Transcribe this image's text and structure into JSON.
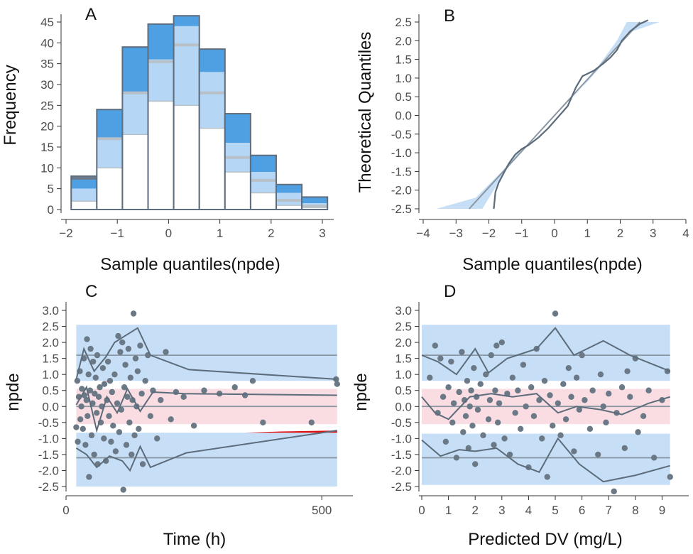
{
  "colors": {
    "band_blue": "#c6dff7",
    "band_pink": "#fadde2",
    "hist_dark": "#4ea0e3",
    "hist_light": "#b5d6f5",
    "edge": "#5e6e7e",
    "median": "#6b7b8b",
    "point": "#6b7986",
    "line": "#5d6c7a",
    "ref": "#8a97a3",
    "red": "#dd1111"
  },
  "chart_data": [
    {
      "panel": "A",
      "type": "bar",
      "xlabel": "Sample quantiles(npde)",
      "ylabel": "Frequency",
      "xlim": [
        -2,
        3
      ],
      "ylim": [
        0,
        47
      ],
      "xticks": [
        "−2",
        "−1",
        "0",
        "1",
        "2",
        "3"
      ],
      "yticks": [
        "0",
        "5",
        "10",
        "15",
        "20",
        "25",
        "30",
        "35",
        "40",
        "45"
      ],
      "bins": [
        -1.9,
        -1.4,
        -0.9,
        -0.4,
        0.1,
        0.6,
        1.1,
        1.6,
        2.1,
        2.6,
        3.1
      ],
      "observed": [
        2,
        10,
        18,
        26,
        25,
        19.5,
        9,
        4,
        1,
        0.5
      ],
      "pi_low": [
        8,
        24,
        39,
        44.5,
        46.5,
        38.5,
        23,
        13,
        6,
        3
      ],
      "pi_mid": [
        5,
        17,
        28,
        36,
        44,
        33,
        16,
        9,
        4,
        1.5
      ],
      "pi_median": [
        7.5,
        17,
        28,
        35.5,
        39.5,
        28,
        12.5,
        7,
        2.2,
        0.8
      ]
    },
    {
      "panel": "B",
      "type": "line",
      "xlabel": "Sample quantiles(npde)",
      "ylabel": "Theoretical Quantiles",
      "xlim": [
        -4,
        4
      ],
      "ylim": [
        -2.5,
        2.5
      ],
      "xticks": [
        "−4",
        "−3",
        "−2",
        "−1",
        "0",
        "1",
        "2",
        "3",
        "4"
      ],
      "yticks": [
        "-2.5",
        "-2.0",
        "-1.5",
        "-1.0",
        "-0.5",
        "0.0",
        "0.5",
        "1.0",
        "1.5",
        "2.0",
        "2.5"
      ],
      "band": {
        "upper": [
          [
            -2.2,
            -2.5
          ],
          [
            -1.5,
            -1.5
          ],
          [
            -0.9,
            -0.8
          ],
          [
            0,
            0
          ],
          [
            0.9,
            0.8
          ],
          [
            1.6,
            1.5
          ],
          [
            2.2,
            2.2
          ],
          [
            3.2,
            2.5
          ]
        ],
        "lower": [
          [
            -3.6,
            -2.5
          ],
          [
            -2.4,
            -2.2
          ],
          [
            -1.6,
            -1.5
          ],
          [
            -0.9,
            -0.8
          ],
          [
            0,
            0
          ],
          [
            0.8,
            0.7
          ],
          [
            1.4,
            1.4
          ],
          [
            1.9,
            2.0
          ],
          [
            2.2,
            2.5
          ]
        ]
      },
      "reference_line": [
        [
          -2.6,
          -2.5
        ],
        [
          2.6,
          2.5
        ]
      ],
      "observed_line": [
        [
          -1.85,
          -2.5
        ],
        [
          -1.8,
          -2.05
        ],
        [
          -1.7,
          -1.8
        ],
        [
          -1.55,
          -1.55
        ],
        [
          -1.4,
          -1.3
        ],
        [
          -1.2,
          -1.05
        ],
        [
          -1.0,
          -0.9
        ],
        [
          -0.8,
          -0.8
        ],
        [
          -0.5,
          -0.6
        ],
        [
          -0.2,
          -0.35
        ],
        [
          0.1,
          -0.05
        ],
        [
          0.4,
          0.25
        ],
        [
          0.65,
          0.75
        ],
        [
          0.85,
          1.05
        ],
        [
          1.2,
          1.2
        ],
        [
          1.5,
          1.4
        ],
        [
          1.7,
          1.55
        ],
        [
          1.9,
          1.75
        ],
        [
          2.05,
          2.0
        ],
        [
          2.3,
          2.25
        ],
        [
          2.6,
          2.45
        ],
        [
          2.85,
          2.55
        ]
      ]
    },
    {
      "panel": "C",
      "type": "scatter",
      "xlabel": "Time (h)",
      "ylabel": "npde",
      "xlim": [
        0,
        540
      ],
      "ylim": [
        -2.9,
        3.2
      ],
      "xticks": [
        0,
        500
      ],
      "xtick_labels": [
        "0",
        "500"
      ],
      "yticks": [
        "-2.5",
        "-2.0",
        "-1.5",
        "-1.0",
        "-0.5",
        "0.0",
        "0.5",
        "1.0",
        "1.5",
        "2.0",
        "2.5",
        "3.0"
      ],
      "band_x": [
        20,
        530
      ],
      "bands": {
        "upper": [
          0.8,
          2.55
        ],
        "middle": [
          -0.55,
          0.55
        ],
        "lower": [
          -2.5,
          -0.82
        ]
      },
      "ref_levels": [
        -1.6,
        0,
        1.6
      ],
      "lines": {
        "upper": [
          [
            20,
            0.85
          ],
          [
            35,
            1.8
          ],
          [
            55,
            1.1
          ],
          [
            78,
            1.55
          ],
          [
            95,
            2.0
          ],
          [
            115,
            2.2
          ],
          [
            140,
            2.45
          ],
          [
            165,
            1.6
          ],
          [
            240,
            1.15
          ],
          [
            530,
            0.85
          ]
        ],
        "middle": [
          [
            20,
            0.05
          ],
          [
            40,
            0.6
          ],
          [
            60,
            -0.75
          ],
          [
            80,
            0.3
          ],
          [
            100,
            -0.2
          ],
          [
            120,
            0.55
          ],
          [
            145,
            -0.15
          ],
          [
            170,
            0.45
          ],
          [
            230,
            0.4
          ],
          [
            530,
            0.35
          ]
        ],
        "lower": [
          [
            20,
            -1.3
          ],
          [
            40,
            -1.5
          ],
          [
            60,
            -1.9
          ],
          [
            85,
            -1.55
          ],
          [
            110,
            -1.7
          ],
          [
            125,
            -2.0
          ],
          [
            145,
            -1.25
          ],
          [
            165,
            -1.9
          ],
          [
            235,
            -1.45
          ],
          [
            530,
            -0.75
          ]
        ]
      },
      "points": [
        [
          20,
          -0.65
        ],
        [
          22,
          0.8
        ],
        [
          23,
          -1.1
        ],
        [
          25,
          0.3
        ],
        [
          27,
          1.1
        ],
        [
          28,
          -0.4
        ],
        [
          30,
          0.0
        ],
        [
          31,
          0.55
        ],
        [
          33,
          -0.7
        ],
        [
          35,
          1.5
        ],
        [
          36,
          0.35
        ],
        [
          38,
          -1.2
        ],
        [
          40,
          0.2
        ],
        [
          41,
          2.1
        ],
        [
          42,
          -0.3
        ],
        [
          44,
          1.0
        ],
        [
          45,
          -2.2
        ],
        [
          47,
          0.5
        ],
        [
          48,
          1.8
        ],
        [
          50,
          -0.9
        ],
        [
          52,
          0.1
        ],
        [
          53,
          1.4
        ],
        [
          55,
          -1.5
        ],
        [
          56,
          0.4
        ],
        [
          58,
          0.9
        ],
        [
          60,
          -0.2
        ],
        [
          61,
          1.6
        ],
        [
          62,
          -1.8
        ],
        [
          64,
          0.3
        ],
        [
          66,
          0.6
        ],
        [
          68,
          -0.5
        ],
        [
          70,
          0.0
        ],
        [
          72,
          1.2
        ],
        [
          74,
          -1.0
        ],
        [
          75,
          0.7
        ],
        [
          78,
          -1.7
        ],
        [
          80,
          0.2
        ],
        [
          82,
          1.4
        ],
        [
          84,
          -0.3
        ],
        [
          86,
          0.8
        ],
        [
          88,
          -1.1
        ],
        [
          90,
          0.45
        ],
        [
          92,
          -0.6
        ],
        [
          95,
          1.0
        ],
        [
          97,
          -1.4
        ],
        [
          100,
          0.1
        ],
        [
          102,
          2.2
        ],
        [
          104,
          -0.8
        ],
        [
          106,
          1.7
        ],
        [
          108,
          -0.1
        ],
        [
          110,
          2.0
        ],
        [
          112,
          -2.6
        ],
        [
          114,
          0.6
        ],
        [
          116,
          1.3
        ],
        [
          118,
          -1.2
        ],
        [
          120,
          0.3
        ],
        [
          122,
          1.8
        ],
        [
          124,
          -0.5
        ],
        [
          126,
          0.9
        ],
        [
          128,
          -1.5
        ],
        [
          130,
          0.2
        ],
        [
          132,
          2.9
        ],
        [
          134,
          -0.9
        ],
        [
          136,
          1.5
        ],
        [
          138,
          0.0
        ],
        [
          140,
          1.1
        ],
        [
          142,
          -0.7
        ],
        [
          145,
          1.9
        ],
        [
          148,
          0.4
        ],
        [
          150,
          -1.8
        ],
        [
          155,
          0.8
        ],
        [
          160,
          1.6
        ],
        [
          165,
          -0.3
        ],
        [
          170,
          0.5
        ],
        [
          178,
          -1.0
        ],
        [
          185,
          0.2
        ],
        [
          195,
          1.7
        ],
        [
          205,
          -0.4
        ],
        [
          215,
          0.45
        ],
        [
          230,
          0.3
        ],
        [
          250,
          -0.6
        ],
        [
          270,
          0.5
        ],
        [
          300,
          0.4
        ],
        [
          330,
          0.6
        ],
        [
          350,
          0.35
        ],
        [
          365,
          0.8
        ],
        [
          385,
          -0.5
        ],
        [
          480,
          -0.5
        ],
        [
          528,
          0.85
        ],
        [
          530,
          0.7
        ]
      ]
    },
    {
      "panel": "D",
      "type": "scatter",
      "xlabel": "Predicted DV (mg/L)",
      "ylabel": "npde",
      "xlim": [
        0,
        9.6
      ],
      "ylim": [
        -2.9,
        3.2
      ],
      "xticks": [
        0,
        1,
        2,
        3,
        4,
        5,
        6,
        7,
        8,
        9
      ],
      "xtick_labels": [
        "0",
        "1",
        "2",
        "3",
        "4",
        "5",
        "6",
        "7",
        "8",
        "9"
      ],
      "yticks": [
        "-2.5",
        "-2.0",
        "-1.5",
        "-1.0",
        "-0.5",
        "0.0",
        "0.5",
        "1.0",
        "1.5",
        "2.0",
        "2.5",
        "3.0"
      ],
      "band_x": [
        0,
        9.3
      ],
      "bands": {
        "upper": [
          0.8,
          2.55
        ],
        "middle": [
          -0.55,
          0.55
        ],
        "lower": [
          -2.45,
          -0.85
        ]
      },
      "ref_levels": [
        -1.6,
        0,
        1.6
      ],
      "lines": {
        "upper": [
          [
            0,
            1.6
          ],
          [
            0.6,
            1.4
          ],
          [
            1.3,
            1.0
          ],
          [
            2.0,
            1.8
          ],
          [
            2.5,
            1.05
          ],
          [
            3.2,
            1.5
          ],
          [
            4.3,
            1.8
          ],
          [
            5.0,
            2.45
          ],
          [
            5.7,
            1.6
          ],
          [
            6.8,
            2.05
          ],
          [
            7.8,
            1.6
          ],
          [
            9.3,
            1.1
          ]
        ],
        "middle": [
          [
            0,
            0.3
          ],
          [
            0.5,
            -0.2
          ],
          [
            1.0,
            -0.4
          ],
          [
            1.8,
            0.3
          ],
          [
            2.6,
            0.4
          ],
          [
            3.4,
            0.3
          ],
          [
            4.3,
            0.4
          ],
          [
            5.1,
            -0.2
          ],
          [
            5.8,
            0.0
          ],
          [
            6.7,
            -0.1
          ],
          [
            7.5,
            -0.25
          ],
          [
            8.5,
            0.1
          ],
          [
            9.3,
            0.3
          ]
        ],
        "lower": [
          [
            0,
            -1.05
          ],
          [
            0.7,
            -1.55
          ],
          [
            1.4,
            -1.35
          ],
          [
            2.0,
            -1.4
          ],
          [
            2.8,
            -1.3
          ],
          [
            3.6,
            -1.8
          ],
          [
            4.4,
            -2.05
          ],
          [
            5.1,
            -1.0
          ],
          [
            5.9,
            -1.8
          ],
          [
            6.8,
            -2.35
          ],
          [
            8.0,
            -2.15
          ],
          [
            9.3,
            -1.85
          ]
        ]
      },
      "points": [
        [
          0.3,
          0.9
        ],
        [
          0.5,
          1.9
        ],
        [
          0.6,
          -0.2
        ],
        [
          0.7,
          1.5
        ],
        [
          0.8,
          0.3
        ],
        [
          0.9,
          -1.1
        ],
        [
          1.0,
          0.6
        ],
        [
          1.1,
          1.4
        ],
        [
          1.15,
          -0.5
        ],
        [
          1.2,
          0.1
        ],
        [
          1.3,
          -1.6
        ],
        [
          1.4,
          0.45
        ],
        [
          1.5,
          1.7
        ],
        [
          1.55,
          -0.8
        ],
        [
          1.6,
          0.2
        ],
        [
          1.65,
          -0.3
        ],
        [
          1.7,
          0.8
        ],
        [
          1.75,
          -1.3
        ],
        [
          1.8,
          0.0
        ],
        [
          1.85,
          0.5
        ],
        [
          1.9,
          -0.6
        ],
        [
          1.95,
          1.2
        ],
        [
          2.0,
          -1.8
        ],
        [
          2.05,
          0.3
        ],
        [
          2.1,
          -0.1
        ],
        [
          2.2,
          0.7
        ],
        [
          2.3,
          -0.9
        ],
        [
          2.4,
          1.0
        ],
        [
          2.5,
          -0.4
        ],
        [
          2.55,
          0.2
        ],
        [
          2.6,
          1.6
        ],
        [
          2.7,
          -1.2
        ],
        [
          2.75,
          0.5
        ],
        [
          2.8,
          1.9
        ],
        [
          2.85,
          -0.5
        ],
        [
          2.9,
          0.1
        ],
        [
          3.0,
          2.0
        ],
        [
          3.1,
          -1.0
        ],
        [
          3.2,
          0.4
        ],
        [
          3.3,
          -1.5
        ],
        [
          3.4,
          0.9
        ],
        [
          3.5,
          -0.2
        ],
        [
          3.6,
          0.5
        ],
        [
          3.7,
          -0.7
        ],
        [
          3.8,
          1.3
        ],
        [
          3.9,
          0.0
        ],
        [
          4.0,
          -1.9
        ],
        [
          4.1,
          0.6
        ],
        [
          4.2,
          -0.3
        ],
        [
          4.3,
          1.8
        ],
        [
          4.4,
          0.2
        ],
        [
          4.5,
          -1.0
        ],
        [
          4.6,
          0.8
        ],
        [
          4.7,
          -2.2
        ],
        [
          4.8,
          0.35
        ],
        [
          4.9,
          -0.6
        ],
        [
          5.0,
          2.9
        ],
        [
          5.1,
          0.1
        ],
        [
          5.2,
          -0.9
        ],
        [
          5.3,
          0.7
        ],
        [
          5.4,
          -0.4
        ],
        [
          5.5,
          1.2
        ],
        [
          5.6,
          0.3
        ],
        [
          5.7,
          -1.4
        ],
        [
          5.8,
          0.9
        ],
        [
          5.9,
          -0.1
        ],
        [
          6.0,
          1.6
        ],
        [
          6.1,
          0.2
        ],
        [
          6.3,
          -0.7
        ],
        [
          6.4,
          0.5
        ],
        [
          6.6,
          -1.5
        ],
        [
          6.7,
          1.0
        ],
        [
          6.8,
          0.0
        ],
        [
          6.9,
          -0.5
        ],
        [
          7.0,
          0.4
        ],
        [
          7.2,
          -2.65
        ],
        [
          7.3,
          -0.2
        ],
        [
          7.5,
          0.6
        ],
        [
          7.6,
          -1.3
        ],
        [
          7.7,
          1.1
        ],
        [
          7.8,
          0.3
        ],
        [
          8.0,
          1.5
        ],
        [
          8.1,
          -0.8
        ],
        [
          8.3,
          -0.3
        ],
        [
          8.5,
          0.5
        ],
        [
          8.7,
          -1.6
        ],
        [
          9.0,
          0.2
        ],
        [
          9.2,
          1.1
        ],
        [
          9.3,
          -2.2
        ]
      ]
    }
  ],
  "panel_labels": [
    "A",
    "B",
    "C",
    "D"
  ]
}
